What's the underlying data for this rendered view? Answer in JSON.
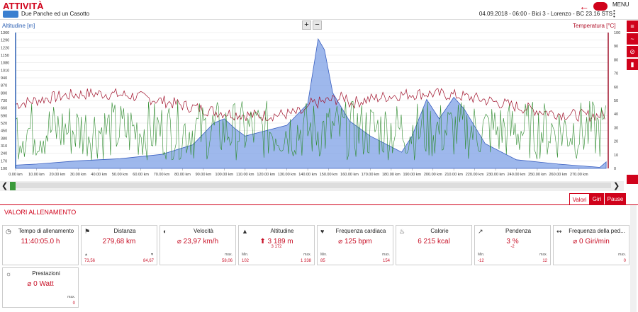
{
  "header": {
    "title": "ATTIVITÀ",
    "subtitle": "Due Panche ed un Casotto",
    "meta": "04.09.2018  -  06:00  -  Bici 3  -  Lorenzo  -  BC 23.16 STS",
    "menu": "MENU"
  },
  "chart": {
    "left_label": "Altitudine [m]",
    "right_label": "Temperatura [°C]",
    "zoom_in": "+",
    "zoom_out": "−",
    "y_left": [
      "1360",
      "1290",
      "1220",
      "1150",
      "1080",
      "1010",
      "940",
      "870",
      "800",
      "730",
      "660",
      "590",
      "520",
      "450",
      "380",
      "310",
      "240",
      "170",
      "100"
    ],
    "y_right": [
      "100",
      "90",
      "80",
      "70",
      "60",
      "50",
      "40",
      "30",
      "20",
      "10",
      "0"
    ],
    "x_ticks": [
      "0.00 km",
      "10.00 km",
      "20.00 km",
      "30.00 km",
      "40.00 km",
      "50.00 km",
      "60.00 km",
      "70.00 km",
      "80.00 km",
      "90.00 km",
      "100.00 km",
      "110.00 km",
      "120.00 km",
      "130.00 km",
      "140.00 km",
      "150.00 km",
      "160.00 km",
      "170.00 km",
      "180.00 km",
      "190.00 km",
      "200.00 km",
      "210.00 km",
      "220.00 km",
      "230.00 km",
      "240.00 km",
      "250.00 km",
      "260.00 km",
      "270.00 km"
    ],
    "colors": {
      "altitude": "#7ea0e6",
      "temperature": "#a0102a",
      "speed": "#2e8b2e"
    }
  },
  "tabs": {
    "valori": "Valori",
    "giri": "Giri",
    "pause": "Pause"
  },
  "section_title": "VALORI ALLENAMENTO",
  "cards": {
    "time": {
      "name": "Tempo di allenamento",
      "value": "11:40:05.0 h",
      "icon": "clock-icon"
    },
    "dist": {
      "name": "Distanza",
      "value": "279,68 km",
      "up": "73,56",
      "down": "84,67",
      "icon": "signpost-icon"
    },
    "speed": {
      "name": "Velocità",
      "value": "⌀ 23,97 km/h",
      "max_label": "max.",
      "max": "58,06",
      "icon": "speedometer-icon"
    },
    "alt": {
      "name": "Altitudine",
      "value": "⬆ 3 189 m",
      "value2": "3 172",
      "min_label": "Min.",
      "min": "102",
      "max_label": "max.",
      "max": "1 338",
      "icon": "mountain-icon"
    },
    "hr": {
      "name": "Frequenza cardiaca",
      "value": "⌀ 125 bpm",
      "min_label": "Min.",
      "min": "85",
      "max_label": "max.",
      "max": "154",
      "icon": "heart-icon"
    },
    "cal": {
      "name": "Calorie",
      "value": "6 215 kcal",
      "icon": "flame-icon"
    },
    "slope": {
      "name": "Pendenza",
      "value": "3 %",
      "value2": "-2",
      "min_label": "Min.",
      "min": "-12",
      "max_label": "max.",
      "max": "12",
      "icon": "slope-icon"
    },
    "cad": {
      "name": "Frequenza della ped...",
      "value": "⌀ 0 Giri/min",
      "max_label": "max.",
      "max": "0",
      "icon": "pedal-icon"
    },
    "power": {
      "name": "Prestazioni",
      "value": "⌀ 0 Watt",
      "max_label": "max.",
      "max": "0",
      "icon": "bulb-icon"
    }
  }
}
